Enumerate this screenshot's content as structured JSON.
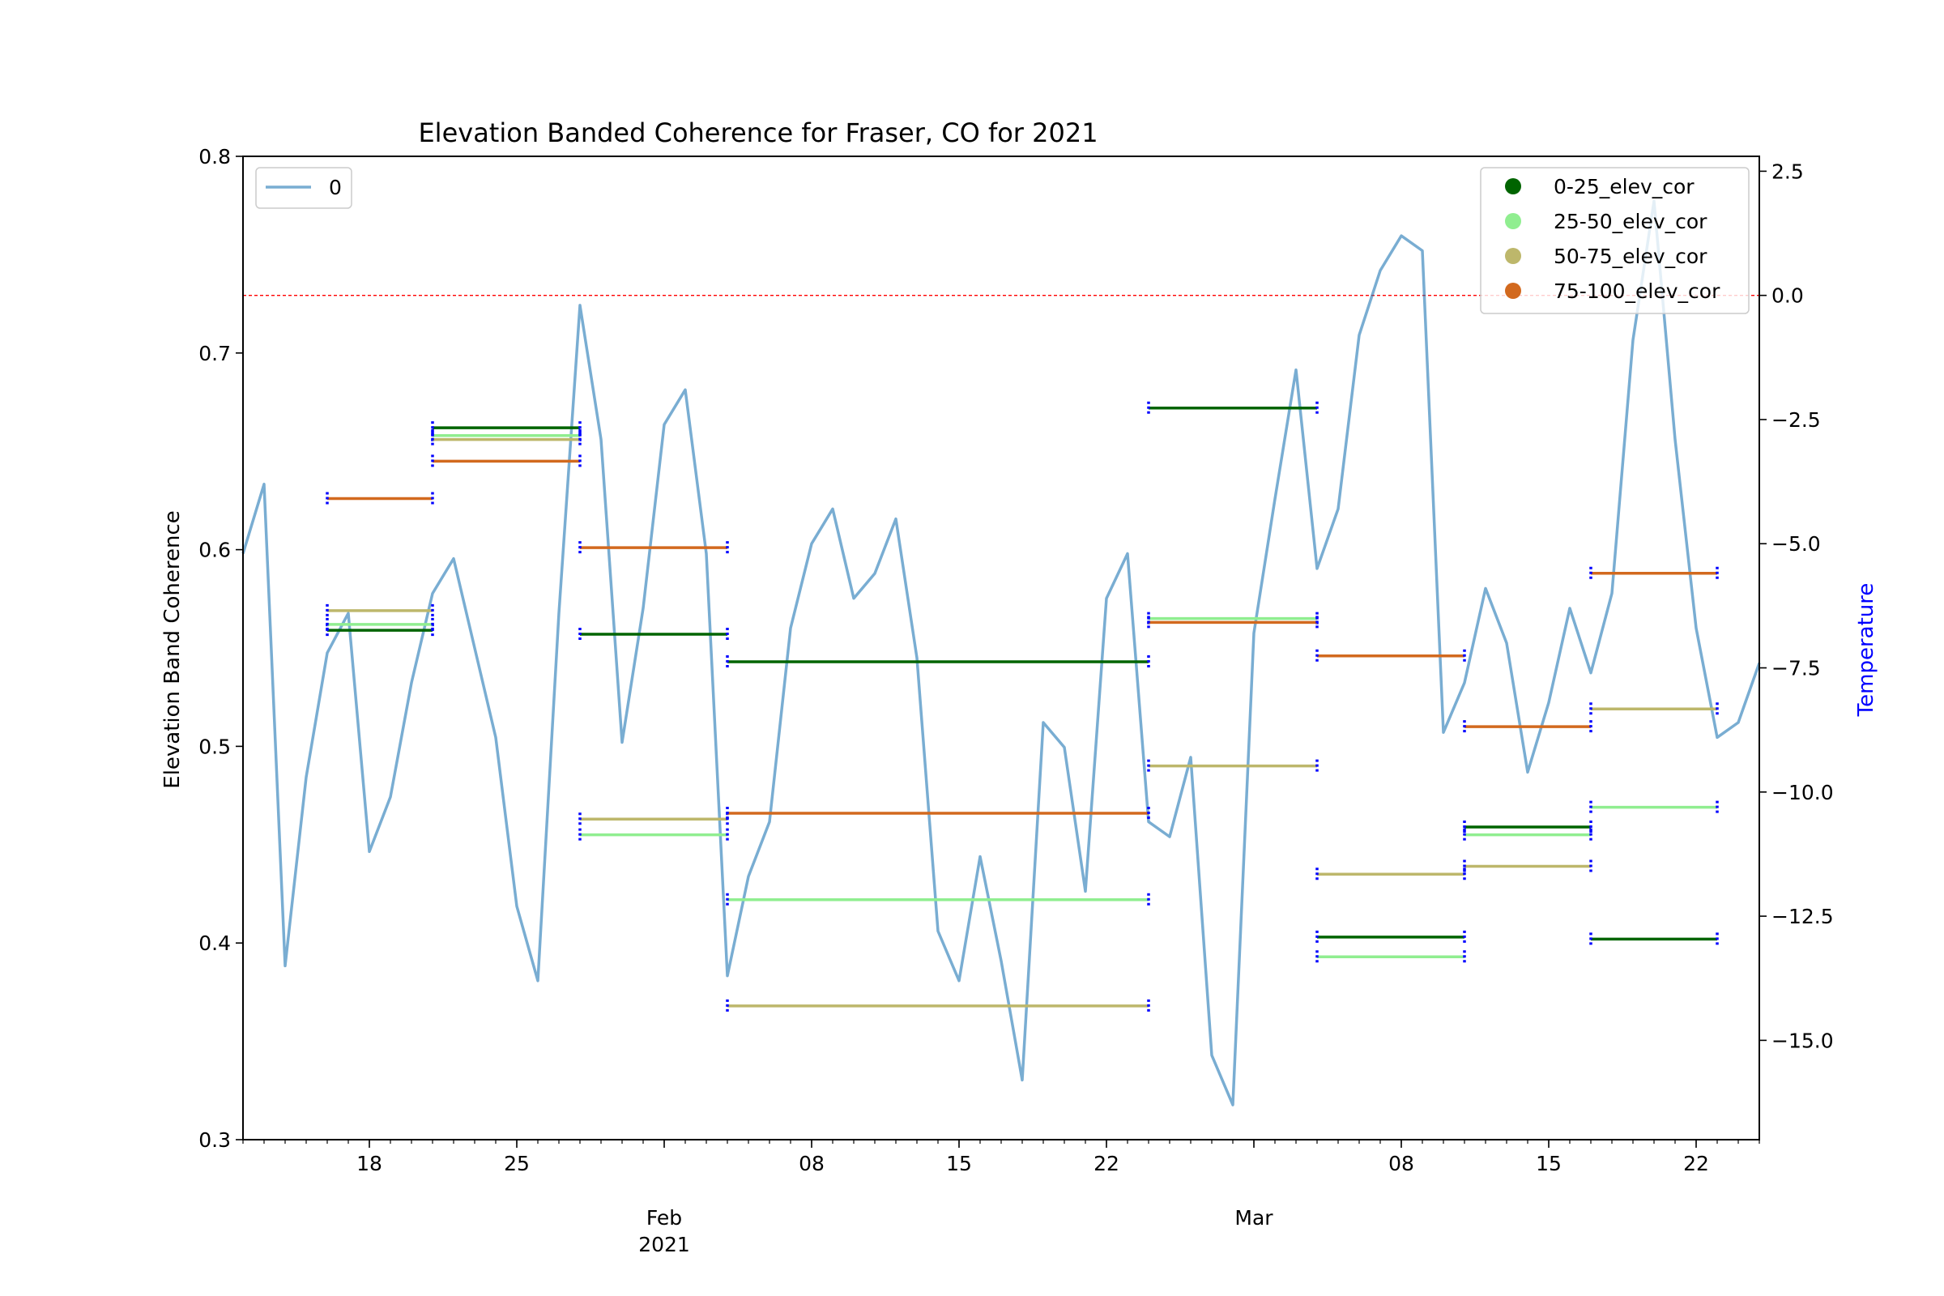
{
  "chart_data": {
    "type": "line",
    "title": "Elevation Banded Coherence for Fraser, CO for 2021",
    "ylabel": "Elevation Band Coherence",
    "y2label": "Temperature",
    "ylim": [
      0.3,
      0.8
    ],
    "y2lim": [
      -17.0,
      2.8
    ],
    "xlim": [
      "2021-01-12",
      "2021-03-25"
    ],
    "yticks": [
      "0.3",
      "0.4",
      "0.5",
      "0.6",
      "0.7",
      "0.8"
    ],
    "y2ticks": [
      "2.5",
      "0.0",
      "−2.5",
      "−5.0",
      "−7.5",
      "−10.0",
      "−12.5",
      "−15.0"
    ],
    "y2tick_values": [
      2.5,
      0.0,
      -2.5,
      -5.0,
      -7.5,
      -10.0,
      -12.5,
      -15.0
    ],
    "xticks": [
      {
        "date": "2021-01-18",
        "label": "18",
        "sub": ""
      },
      {
        "date": "2021-01-25",
        "label": "25",
        "sub": ""
      },
      {
        "date": "2021-02-01",
        "label": "Feb",
        "sub": "2021"
      },
      {
        "date": "2021-02-08",
        "label": "08",
        "sub": ""
      },
      {
        "date": "2021-02-15",
        "label": "15",
        "sub": ""
      },
      {
        "date": "2021-02-22",
        "label": "22",
        "sub": ""
      },
      {
        "date": "2021-03-01",
        "label": "Mar",
        "sub": ""
      },
      {
        "date": "2021-03-08",
        "label": "08",
        "sub": ""
      },
      {
        "date": "2021-03-15",
        "label": "15",
        "sub": ""
      },
      {
        "date": "2021-03-22",
        "label": "22",
        "sub": ""
      }
    ],
    "freezing_line": 0.0,
    "legend_left": {
      "position": "top-left",
      "entries": [
        {
          "name": "0",
          "color": "#1f77b4"
        }
      ]
    },
    "legend_right": {
      "position": "top-right"
    },
    "temperature": {
      "name": "0",
      "color": "#1f77b4",
      "x": [
        "2021-01-12",
        "2021-01-13",
        "2021-01-14",
        "2021-01-15",
        "2021-01-16",
        "2021-01-17",
        "2021-01-18",
        "2021-01-19",
        "2021-01-20",
        "2021-01-21",
        "2021-01-22",
        "2021-01-23",
        "2021-01-24",
        "2021-01-25",
        "2021-01-26",
        "2021-01-27",
        "2021-01-28",
        "2021-01-29",
        "2021-01-30",
        "2021-01-31",
        "2021-02-01",
        "2021-02-02",
        "2021-02-03",
        "2021-02-04",
        "2021-02-05",
        "2021-02-06",
        "2021-02-07",
        "2021-02-08",
        "2021-02-09",
        "2021-02-10",
        "2021-02-11",
        "2021-02-12",
        "2021-02-13",
        "2021-02-14",
        "2021-02-15",
        "2021-02-16",
        "2021-02-17",
        "2021-02-18",
        "2021-02-19",
        "2021-02-20",
        "2021-02-21",
        "2021-02-22",
        "2021-02-23",
        "2021-02-24",
        "2021-02-25",
        "2021-02-26",
        "2021-02-27",
        "2021-02-28",
        "2021-03-01",
        "2021-03-02",
        "2021-03-03",
        "2021-03-04",
        "2021-03-05",
        "2021-03-06",
        "2021-03-07",
        "2021-03-08",
        "2021-03-09",
        "2021-03-10",
        "2021-03-11",
        "2021-03-12",
        "2021-03-13",
        "2021-03-14",
        "2021-03-15",
        "2021-03-16",
        "2021-03-17",
        "2021-03-18",
        "2021-03-19",
        "2021-03-20",
        "2021-03-21",
        "2021-03-22",
        "2021-03-23",
        "2021-03-24",
        "2021-03-25"
      ],
      "y": [
        -5.2,
        -3.8,
        -13.5,
        -9.7,
        -7.2,
        -6.4,
        -11.2,
        -10.1,
        -7.8,
        -6.0,
        -5.3,
        -7.1,
        -8.9,
        -12.3,
        -13.8,
        -6.4,
        -0.2,
        -2.9,
        -9.0,
        -6.3,
        -2.6,
        -1.9,
        -5.2,
        -13.7,
        -11.7,
        -10.6,
        -6.7,
        -5.0,
        -4.3,
        -6.1,
        -5.6,
        -4.5,
        -7.3,
        -12.8,
        -13.8,
        -11.3,
        -13.4,
        -15.8,
        -8.6,
        -9.1,
        -12.0,
        -6.1,
        -5.2,
        -10.6,
        -10.9,
        -9.3,
        -15.3,
        -16.3,
        -6.8,
        -4.1,
        -1.5,
        -5.5,
        -4.3,
        -0.8,
        0.5,
        1.2,
        0.9,
        -8.8,
        -7.8,
        -5.9,
        -7.0,
        -9.6,
        -8.2,
        -6.3,
        -7.6,
        -6.0,
        -0.9,
        1.9,
        -2.9,
        -6.7,
        -8.9,
        -8.6,
        -7.4
      ]
    },
    "series": [
      {
        "name": "0-25_elev_cor",
        "color": "#006400",
        "segments": [
          {
            "start": "2021-01-16",
            "end": "2021-01-21",
            "value": 0.559
          },
          {
            "start": "2021-01-21",
            "end": "2021-01-28",
            "value": 0.662
          },
          {
            "start": "2021-01-28",
            "end": "2021-02-04",
            "value": 0.557
          },
          {
            "start": "2021-02-04",
            "end": "2021-02-24",
            "value": 0.543
          },
          {
            "start": "2021-02-24",
            "end": "2021-03-04",
            "value": 0.672
          },
          {
            "start": "2021-03-04",
            "end": "2021-03-11",
            "value": 0.403
          },
          {
            "start": "2021-03-11",
            "end": "2021-03-17",
            "value": 0.459
          },
          {
            "start": "2021-03-17",
            "end": "2021-03-23",
            "value": 0.402
          }
        ]
      },
      {
        "name": "25-50_elev_cor",
        "color": "#90ee90",
        "segments": [
          {
            "start": "2021-01-16",
            "end": "2021-01-21",
            "value": 0.562
          },
          {
            "start": "2021-01-21",
            "end": "2021-01-28",
            "value": 0.658
          },
          {
            "start": "2021-01-28",
            "end": "2021-02-04",
            "value": 0.455
          },
          {
            "start": "2021-02-04",
            "end": "2021-02-24",
            "value": 0.422
          },
          {
            "start": "2021-02-24",
            "end": "2021-03-04",
            "value": 0.565
          },
          {
            "start": "2021-03-04",
            "end": "2021-03-11",
            "value": 0.393
          },
          {
            "start": "2021-03-11",
            "end": "2021-03-17",
            "value": 0.455
          },
          {
            "start": "2021-03-17",
            "end": "2021-03-23",
            "value": 0.469
          }
        ]
      },
      {
        "name": "50-75_elev_cor",
        "color": "#bdb76b",
        "segments": [
          {
            "start": "2021-01-16",
            "end": "2021-01-21",
            "value": 0.569
          },
          {
            "start": "2021-01-21",
            "end": "2021-01-28",
            "value": 0.656
          },
          {
            "start": "2021-01-28",
            "end": "2021-02-04",
            "value": 0.463
          },
          {
            "start": "2021-02-04",
            "end": "2021-02-24",
            "value": 0.368
          },
          {
            "start": "2021-02-24",
            "end": "2021-03-04",
            "value": 0.49
          },
          {
            "start": "2021-03-04",
            "end": "2021-03-11",
            "value": 0.435
          },
          {
            "start": "2021-03-11",
            "end": "2021-03-17",
            "value": 0.439
          },
          {
            "start": "2021-03-17",
            "end": "2021-03-23",
            "value": 0.519
          }
        ]
      },
      {
        "name": "75-100_elev_cor",
        "color": "#d2691e",
        "segments": [
          {
            "start": "2021-01-16",
            "end": "2021-01-21",
            "value": 0.626
          },
          {
            "start": "2021-01-21",
            "end": "2021-01-28",
            "value": 0.645
          },
          {
            "start": "2021-01-28",
            "end": "2021-02-04",
            "value": 0.601
          },
          {
            "start": "2021-02-04",
            "end": "2021-02-24",
            "value": 0.466
          },
          {
            "start": "2021-02-24",
            "end": "2021-03-04",
            "value": 0.563
          },
          {
            "start": "2021-03-04",
            "end": "2021-03-11",
            "value": 0.546
          },
          {
            "start": "2021-03-11",
            "end": "2021-03-17",
            "value": 0.51
          },
          {
            "start": "2021-03-17",
            "end": "2021-03-23",
            "value": 0.588
          }
        ]
      }
    ]
  }
}
